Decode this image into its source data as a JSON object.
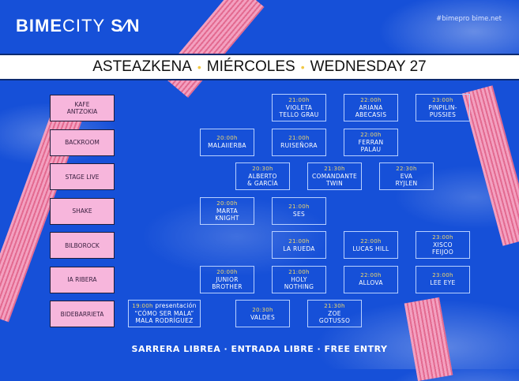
{
  "header": {
    "logo": "BIMECITY SON",
    "logo_bold": "BIME",
    "logo_thin": "CITY",
    "logo_son": "S∕N",
    "social": "#bimepro  bime.net"
  },
  "title": {
    "parts": [
      "ASTEAZKENA",
      "MIÉRCOLES",
      "WEDNESDAY 27"
    ],
    "separator": "•"
  },
  "colors": {
    "background": "#1650d8",
    "venue": "#f7b6dc",
    "time": "#f1d86a",
    "separator": "#f1c844"
  },
  "venues": [
    "KAFE\nANTZOKIA",
    "BACKROOM",
    "STAGE LIVE",
    "SHAKE",
    "BILBOROCK",
    "IA RIBERA",
    "BIDEBARRIETA"
  ],
  "events": [
    {
      "venue": 0,
      "time": "21:00h",
      "name": "VIOLETA\nTELLO GRAU"
    },
    {
      "venue": 0,
      "time": "22:00h",
      "name": "ARIANA\nABECASIS"
    },
    {
      "venue": 0,
      "time": "23:00h",
      "name": "PINPILIN-\nPUSSIES"
    },
    {
      "venue": 1,
      "time": "20:00h",
      "name": "MALAIIERBA"
    },
    {
      "venue": 1,
      "time": "21:00h",
      "name": "RUISEÑORA"
    },
    {
      "venue": 1,
      "time": "22:00h",
      "name": "FERRAN\nPALAU"
    },
    {
      "venue": 2,
      "time": "20:30h",
      "name": "ALBERTO\n& GARCÍA"
    },
    {
      "venue": 2,
      "time": "21:30h",
      "name": "COMANDANTE\nTWIN"
    },
    {
      "venue": 2,
      "time": "22:30h",
      "name": "EVA\nRYJLEN"
    },
    {
      "venue": 3,
      "time": "20:00h",
      "name": "MARTA\nKNIGHT"
    },
    {
      "venue": 3,
      "time": "21:00h",
      "name": "SES"
    },
    {
      "venue": 4,
      "time": "21:00h",
      "name": "LA RUEDA"
    },
    {
      "venue": 4,
      "time": "22:00h",
      "name": "LUCAS HILL"
    },
    {
      "venue": 4,
      "time": "23:00h",
      "name": "XISCO\nFEIJOO"
    },
    {
      "venue": 5,
      "time": "20:00h",
      "name": "JUNIOR\nBROTHER"
    },
    {
      "venue": 5,
      "time": "21:00h",
      "name": "HOLY\nNOTHING"
    },
    {
      "venue": 5,
      "time": "22:00h",
      "name": "ALLOVA"
    },
    {
      "venue": 5,
      "time": "23:00h",
      "name": "LEE EYE"
    },
    {
      "venue": 6,
      "time": "19:00h",
      "note": "presentación",
      "name": "“CÓMO SER MALA”\nMALA RODRÍGUEZ"
    },
    {
      "venue": 6,
      "time": "20:30h",
      "name": "VALDES"
    },
    {
      "venue": 6,
      "time": "21:30h",
      "name": "ZOE\nGOTUSSO"
    }
  ],
  "footer": "SARRERA LIBREA  ·  ENTRADA LIBRE  ·  FREE ENTRY"
}
